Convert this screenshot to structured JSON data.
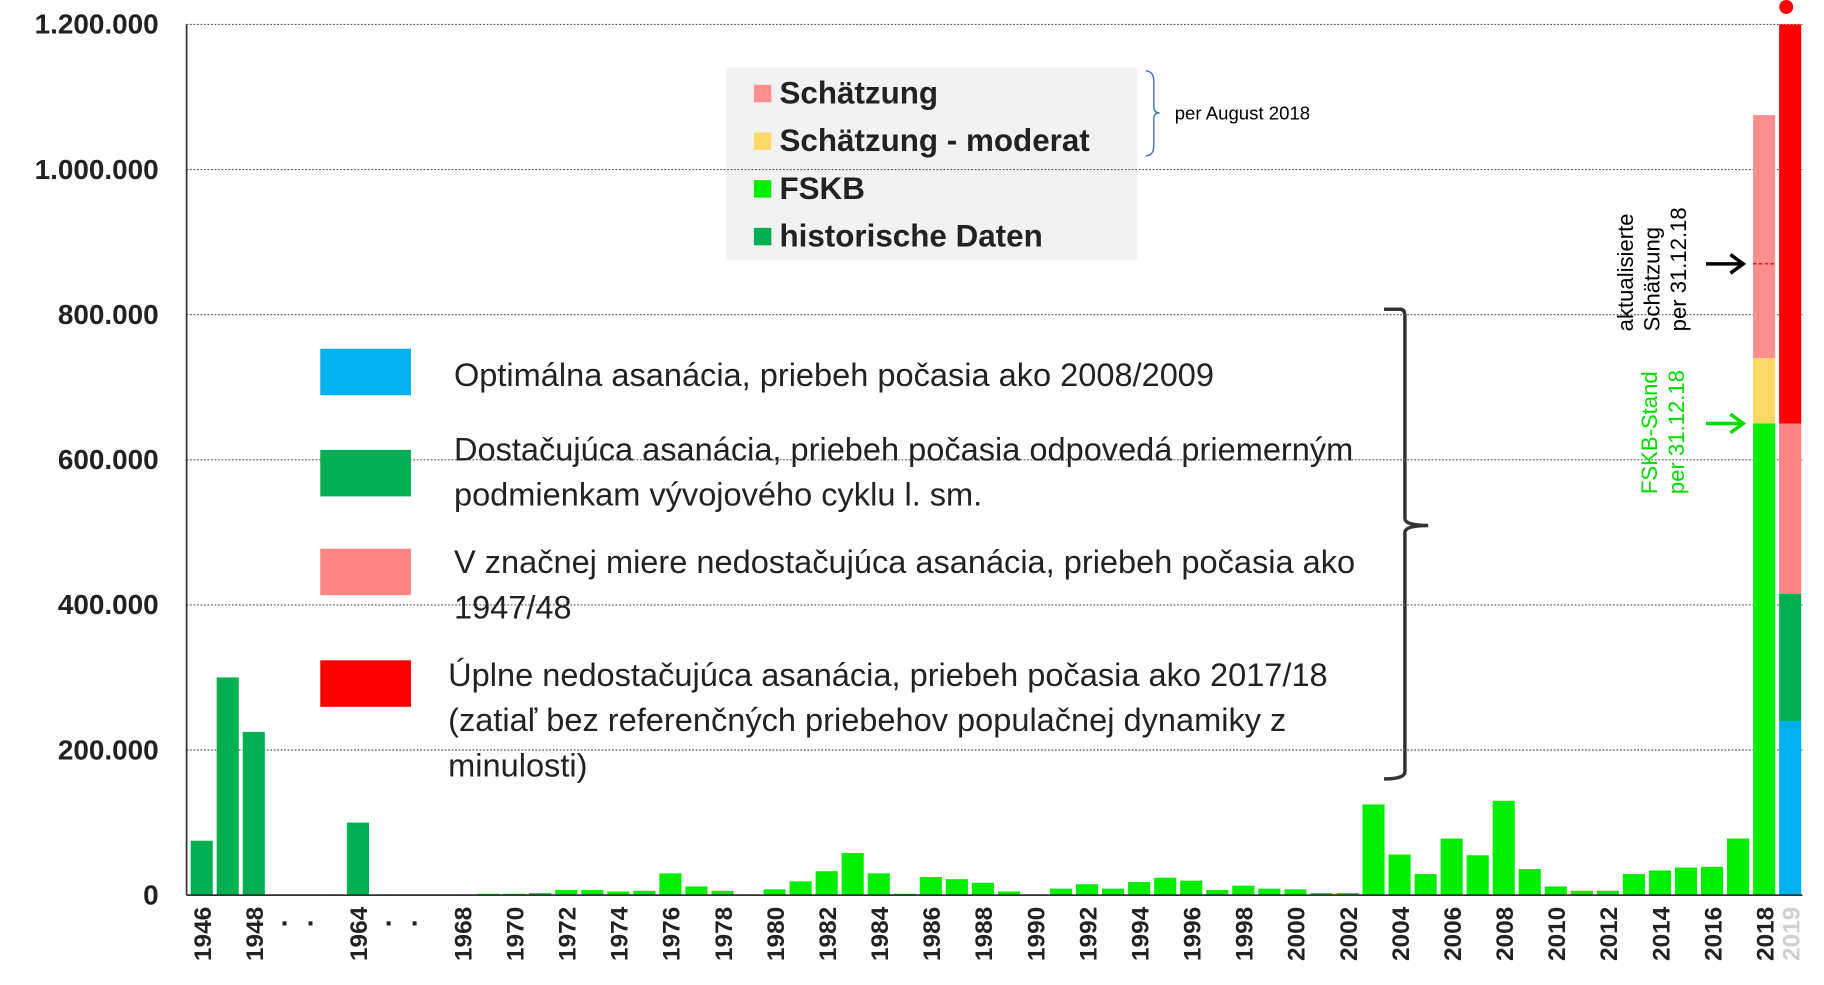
{
  "chart_data": {
    "type": "bar",
    "stacked": true,
    "categories": [
      "1946",
      null,
      "1948",
      ".",
      ".",
      null,
      "1964",
      ".",
      ".",
      null,
      "1968",
      null,
      "1970",
      null,
      "1972",
      null,
      "1974",
      null,
      "1976",
      null,
      "1978",
      null,
      "1980",
      null,
      "1982",
      null,
      "1984",
      null,
      "1986",
      null,
      "1988",
      null,
      "1990",
      null,
      "1992",
      null,
      "1994",
      null,
      "1996",
      null,
      "1998",
      null,
      "2000",
      null,
      "2002",
      null,
      "2004",
      null,
      "2006",
      null,
      "2008",
      null,
      "2010",
      null,
      "2012",
      null,
      "2014",
      null,
      "2016",
      null,
      "2018",
      "2019"
    ],
    "series": [
      {
        "name": "historische Daten",
        "color": "#00b050",
        "values": [
          75000,
          300000,
          225000,
          null,
          null,
          null,
          100000,
          null,
          null,
          null,
          null,
          null,
          null,
          null,
          null,
          null,
          null,
          null,
          null,
          null,
          null,
          null,
          null,
          null,
          null,
          null,
          null,
          null,
          null,
          null,
          null,
          null,
          null,
          null,
          null,
          null,
          null,
          null,
          null,
          null,
          null,
          null,
          null,
          null,
          null,
          null,
          null,
          null,
          null,
          null,
          null,
          null,
          null,
          null,
          null,
          null,
          null,
          null,
          null,
          null,
          null,
          null
        ]
      },
      {
        "name": "FSKB",
        "color": "#00ee00",
        "values": [
          null,
          null,
          null,
          null,
          null,
          null,
          null,
          null,
          null,
          null,
          1000,
          2000,
          2000,
          3000,
          7000,
          7000,
          5000,
          6000,
          30000,
          12000,
          6000,
          1000,
          8000,
          19000,
          33000,
          58000,
          30000,
          2000,
          25000,
          22000,
          17000,
          5000,
          1000,
          9000,
          15000,
          9000,
          18000,
          24000,
          20000,
          7000,
          13000,
          9000,
          8000,
          3000,
          3000,
          125000,
          56000,
          29000,
          78000,
          55000,
          130000,
          36000,
          12000,
          6000,
          6000,
          29000,
          34000,
          38000,
          39000,
          78000,
          650000,
          null
        ]
      },
      {
        "name": "Schätzung - moderat",
        "color": "#ffd966",
        "values": [
          null,
          null,
          null,
          null,
          null,
          null,
          null,
          null,
          null,
          null,
          null,
          null,
          null,
          null,
          null,
          null,
          null,
          null,
          null,
          null,
          null,
          null,
          null,
          null,
          null,
          null,
          null,
          null,
          null,
          null,
          null,
          null,
          null,
          null,
          null,
          null,
          null,
          null,
          null,
          null,
          null,
          null,
          null,
          null,
          null,
          null,
          null,
          null,
          null,
          null,
          null,
          null,
          null,
          null,
          null,
          null,
          null,
          null,
          null,
          null,
          90000,
          null
        ]
      },
      {
        "name": "Schätzung",
        "color": "#ff8f8f",
        "values": [
          null,
          null,
          null,
          null,
          null,
          null,
          null,
          null,
          null,
          null,
          null,
          null,
          null,
          null,
          null,
          null,
          null,
          null,
          null,
          null,
          null,
          null,
          null,
          null,
          null,
          null,
          null,
          null,
          null,
          null,
          null,
          null,
          null,
          null,
          null,
          null,
          null,
          null,
          null,
          null,
          null,
          null,
          null,
          null,
          null,
          null,
          null,
          null,
          null,
          null,
          null,
          null,
          null,
          null,
          null,
          null,
          null,
          null,
          null,
          null,
          335000,
          null
        ]
      },
      {
        "name": "Optimálna asanácia, priebeh počasia ako 2008/2009",
        "color": "#00b0f0",
        "values": [
          null,
          null,
          null,
          null,
          null,
          null,
          null,
          null,
          null,
          null,
          null,
          null,
          null,
          null,
          null,
          null,
          null,
          null,
          null,
          null,
          null,
          null,
          null,
          null,
          null,
          null,
          null,
          null,
          null,
          null,
          null,
          null,
          null,
          null,
          null,
          null,
          null,
          null,
          null,
          null,
          null,
          null,
          null,
          null,
          null,
          null,
          null,
          null,
          null,
          null,
          null,
          null,
          null,
          null,
          null,
          null,
          null,
          null,
          null,
          null,
          null,
          240000
        ]
      },
      {
        "name": "Dostačujúca asanácia, priebeh počasia odpovedá priemerným podmienkam vývojového cyklu l. sm.",
        "color": "#00b050",
        "values": [
          null,
          null,
          null,
          null,
          null,
          null,
          null,
          null,
          null,
          null,
          null,
          null,
          null,
          null,
          null,
          null,
          null,
          null,
          null,
          null,
          null,
          null,
          null,
          null,
          null,
          null,
          null,
          null,
          null,
          null,
          null,
          null,
          null,
          null,
          null,
          null,
          null,
          null,
          null,
          null,
          null,
          null,
          null,
          null,
          null,
          null,
          null,
          null,
          null,
          null,
          null,
          null,
          null,
          null,
          null,
          null,
          null,
          null,
          null,
          null,
          null,
          175000
        ]
      },
      {
        "name": "V značnej miere nedostačujúca asanácia, priebeh počasia ako 1947/48",
        "color": "#ff8585",
        "values": [
          null,
          null,
          null,
          null,
          null,
          null,
          null,
          null,
          null,
          null,
          null,
          null,
          null,
          null,
          null,
          null,
          null,
          null,
          null,
          null,
          null,
          null,
          null,
          null,
          null,
          null,
          null,
          null,
          null,
          null,
          null,
          null,
          null,
          null,
          null,
          null,
          null,
          null,
          null,
          null,
          null,
          null,
          null,
          null,
          null,
          null,
          null,
          null,
          null,
          null,
          null,
          null,
          null,
          null,
          null,
          null,
          null,
          null,
          null,
          null,
          null,
          235000
        ]
      },
      {
        "name": "Úplne nedostačujúca asanácia, priebeh počasia ako 2017/18 (zatiaľ bez referenčných priebehov populačnej dynamiky z minulosti)",
        "color": "#ff0000",
        "values": [
          null,
          null,
          null,
          null,
          null,
          null,
          null,
          null,
          null,
          null,
          null,
          null,
          null,
          null,
          null,
          null,
          null,
          null,
          null,
          null,
          null,
          null,
          null,
          null,
          null,
          null,
          null,
          null,
          null,
          null,
          null,
          null,
          null,
          null,
          null,
          null,
          null,
          null,
          null,
          null,
          null,
          null,
          null,
          null,
          null,
          null,
          null,
          null,
          null,
          null,
          null,
          null,
          null,
          null,
          null,
          null,
          null,
          null,
          null,
          null,
          null,
          550000
        ]
      }
    ],
    "ylim": [
      0,
      1200000
    ],
    "yticks": [
      0,
      {
        "value": 200000,
        "label": "200.000"
      },
      {
        "value": 400000,
        "label": "400.000"
      },
      {
        "value": 600000,
        "label": "600.000"
      },
      {
        "value": 800000,
        "label": "800.000"
      },
      {
        "value": 1000000,
        "label": "1.000.000"
      },
      {
        "value": 1200000,
        "label": "1.200.000"
      }
    ],
    "grid": true,
    "legend_note": "per August 2018",
    "estimate_line": 870000,
    "annotations": [
      {
        "lines": [
          "aktualisierte",
          "Schätzung",
          "per 31.12.18"
        ],
        "color": "#000000"
      },
      {
        "lines": [
          "FSKB-Stand",
          "per 31.12.18"
        ],
        "color": "#00dd00"
      }
    ]
  }
}
